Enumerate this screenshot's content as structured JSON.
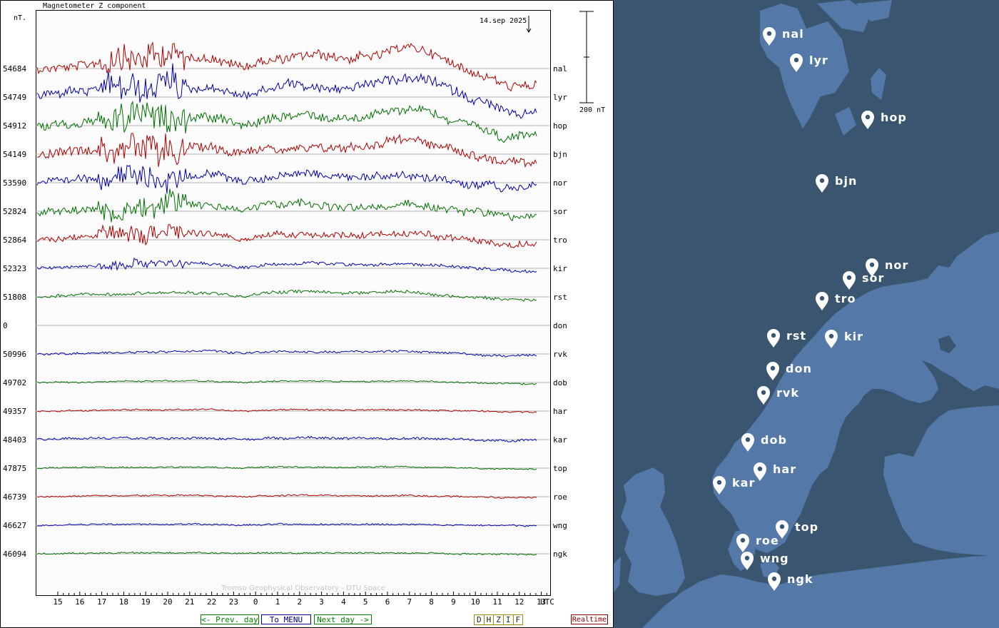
{
  "plot": {
    "title": "Magnetometer Z component",
    "unit_label": "nT.",
    "date_label": "14.sep 2025",
    "scale_label": "200 nT",
    "watermark": "Tromso Geophysical Observatory - DTU Space",
    "utc_label": "UTC",
    "hour_ticks": [
      "15",
      "16",
      "17",
      "18",
      "19",
      "20",
      "21",
      "22",
      "23",
      "0",
      "1",
      "2",
      "3",
      "4",
      "5",
      "6",
      "7",
      "8",
      "9",
      "10",
      "11",
      "12",
      "13"
    ],
    "trace_colors": {
      "red": "#b00000",
      "blue": "#0000b0",
      "green": "#007000"
    },
    "stations": [
      {
        "code": "nal",
        "baseline": "54684",
        "color": "red",
        "amp": 60,
        "noise": 6
      },
      {
        "code": "lyr",
        "baseline": "54749",
        "color": "blue",
        "amp": 55,
        "noise": 6
      },
      {
        "code": "hop",
        "baseline": "54912",
        "color": "green",
        "amp": 45,
        "noise": 6
      },
      {
        "code": "bjn",
        "baseline": "54149",
        "color": "red",
        "amp": 45,
        "noise": 6
      },
      {
        "code": "nor",
        "baseline": "53590",
        "color": "blue",
        "amp": 35,
        "noise": 5
      },
      {
        "code": "sor",
        "baseline": "52824",
        "color": "green",
        "amp": 30,
        "noise": 5
      },
      {
        "code": "tro",
        "baseline": "52864",
        "color": "red",
        "amp": 30,
        "noise": 4
      },
      {
        "code": "kir",
        "baseline": "52323",
        "color": "blue",
        "amp": 25,
        "noise": 2
      },
      {
        "code": "rst",
        "baseline": "51808",
        "color": "green",
        "amp": 25,
        "noise": 2
      },
      {
        "code": "don",
        "baseline": "0",
        "color": "none",
        "amp": 0,
        "noise": 0
      },
      {
        "code": "rvk",
        "baseline": "50996",
        "color": "blue",
        "amp": 12,
        "noise": 1.5
      },
      {
        "code": "dob",
        "baseline": "49702",
        "color": "green",
        "amp": 8,
        "noise": 1
      },
      {
        "code": "har",
        "baseline": "49357",
        "color": "red",
        "amp": 7,
        "noise": 1
      },
      {
        "code": "kar",
        "baseline": "48403",
        "color": "blue",
        "amp": 8,
        "noise": 1.5
      },
      {
        "code": "top",
        "baseline": "47875",
        "color": "green",
        "amp": 6,
        "noise": 1
      },
      {
        "code": "roe",
        "baseline": "46739",
        "color": "red",
        "amp": 6,
        "noise": 1
      },
      {
        "code": "wng",
        "baseline": "46627",
        "color": "blue",
        "amp": 5,
        "noise": 1
      },
      {
        "code": "ngk",
        "baseline": "46094",
        "color": "green",
        "amp": 5,
        "noise": 1
      }
    ]
  },
  "nav": {
    "prev_label": "<- Prev. day",
    "menu_label": "To MENU",
    "next_label": "Next day ->",
    "components": [
      "D",
      "H",
      "Z",
      "I",
      "F"
    ],
    "realtime_label": "Realtime"
  },
  "map": {
    "colors": {
      "sea": "#3a556f",
      "land": "#5479a8",
      "pin": "#ffffff"
    },
    "markers": [
      {
        "code": "nal",
        "label": "nal"
      },
      {
        "code": "lyr",
        "label": "lyr"
      },
      {
        "code": "hop",
        "label": "hop"
      },
      {
        "code": "bjn",
        "label": "bjn"
      },
      {
        "code": "nor",
        "label": "nor"
      },
      {
        "code": "sor",
        "label": "sor"
      },
      {
        "code": "tro",
        "label": "tro"
      },
      {
        "code": "rst",
        "label": "rst"
      },
      {
        "code": "kir",
        "label": "kir"
      },
      {
        "code": "don",
        "label": "don"
      },
      {
        "code": "rvk",
        "label": "rvk"
      },
      {
        "code": "dob",
        "label": "dob"
      },
      {
        "code": "har",
        "label": "har"
      },
      {
        "code": "kar",
        "label": "kar"
      },
      {
        "code": "top",
        "label": "top"
      },
      {
        "code": "roe",
        "label": "roe"
      },
      {
        "code": "wng",
        "label": "wng"
      },
      {
        "code": "ngk",
        "label": "ngk"
      }
    ]
  }
}
